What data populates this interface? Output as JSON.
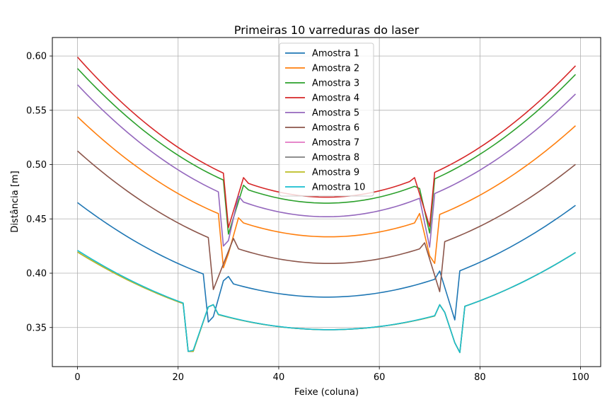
{
  "chart_data": {
    "type": "line",
    "title": "Primeiras 10 varreduras do laser",
    "xlabel": "Feixe (coluna)",
    "ylabel": "Distância [m]",
    "xlim": [
      -5,
      104
    ],
    "ylim": [
      0.314,
      0.617
    ],
    "xticks": [
      0,
      20,
      40,
      60,
      80,
      100
    ],
    "yticks": [
      0.35,
      0.4,
      0.45,
      0.5,
      0.55,
      0.6
    ],
    "ytick_labels": [
      "0.35",
      "0.40",
      "0.45",
      "0.50",
      "0.55",
      "0.60"
    ],
    "grid": true,
    "legend_position": "top-center",
    "x_range": [
      0,
      99
    ],
    "series": [
      {
        "name": "Amostra 1",
        "color": "#1f77b4",
        "segments": [
          {
            "x0": 0,
            "x1": 26,
            "end": 0.465,
            "mid": 0.378,
            "apex": 49.5
          },
          {
            "x0": 30,
            "x1": 72,
            "end": 0.465,
            "mid": 0.378,
            "apex": 49.5
          },
          {
            "x0": 75,
            "x1": 99,
            "end": 0.4625,
            "mid": 0.378,
            "apex": 49.5
          }
        ],
        "bridges": [
          [
            26,
            0.355
          ],
          [
            27,
            0.36
          ],
          [
            29,
            0.393
          ],
          [
            30,
            0.397
          ],
          [
            72,
            0.402
          ],
          [
            75,
            0.357
          ]
        ]
      },
      {
        "name": "Amostra 2",
        "color": "#ff7f0e",
        "segments": [
          {
            "x0": 0,
            "x1": 29,
            "end": 0.544,
            "mid": 0.4335,
            "apex": 50
          },
          {
            "x0": 32,
            "x1": 68,
            "end": 0.544,
            "mid": 0.4335,
            "apex": 50
          },
          {
            "x0": 71,
            "x1": 99,
            "end": 0.54,
            "mid": 0.4335,
            "apex": 50
          }
        ],
        "bridges": [
          [
            29,
            0.405
          ],
          [
            30,
            0.418
          ],
          [
            32,
            0.451
          ],
          [
            68,
            0.455
          ],
          [
            70,
            0.416
          ],
          [
            71,
            0.409
          ]
        ]
      },
      {
        "name": "Amostra 3",
        "color": "#2ca02c",
        "segments": [
          {
            "x0": 0,
            "x1": 30,
            "end": 0.5885,
            "mid": 0.4645,
            "apex": 49.5
          },
          {
            "x0": 33,
            "x1": 68,
            "end": 0.5885,
            "mid": 0.4645,
            "apex": 49.5
          },
          {
            "x0": 70,
            "x1": 99,
            "end": 0.583,
            "mid": 0.4645,
            "apex": 49.5
          }
        ],
        "bridges": [
          [
            30,
            0.436
          ],
          [
            33,
            0.481
          ],
          [
            68,
            0.478
          ],
          [
            70,
            0.437
          ]
        ]
      },
      {
        "name": "Amostra 4",
        "color": "#d62728",
        "segments": [
          {
            "x0": 0,
            "x1": 30,
            "end": 0.599,
            "mid": 0.47,
            "apex": 49.5
          },
          {
            "x0": 33,
            "x1": 67,
            "end": 0.599,
            "mid": 0.47,
            "apex": 49.5
          },
          {
            "x0": 70,
            "x1": 99,
            "end": 0.591,
            "mid": 0.47,
            "apex": 49.5
          }
        ],
        "bridges": [
          [
            30,
            0.442
          ],
          [
            33,
            0.488
          ],
          [
            67,
            0.488
          ],
          [
            70,
            0.443
          ]
        ]
      },
      {
        "name": "Amostra 5",
        "color": "#9467bd",
        "segments": [
          {
            "x0": 0,
            "x1": 29,
            "end": 0.5735,
            "mid": 0.452,
            "apex": 49.5
          },
          {
            "x0": 32,
            "x1": 68,
            "end": 0.5735,
            "mid": 0.452,
            "apex": 49.5
          },
          {
            "x0": 70,
            "x1": 99,
            "end": 0.565,
            "mid": 0.452,
            "apex": 49.5
          }
        ],
        "bridges": [
          [
            29,
            0.425
          ],
          [
            30,
            0.43
          ],
          [
            32,
            0.471
          ],
          [
            68,
            0.469
          ],
          [
            70,
            0.424
          ]
        ]
      },
      {
        "name": "Amostra 6",
        "color": "#8c564b",
        "segments": [
          {
            "x0": 0,
            "x1": 27,
            "end": 0.5125,
            "mid": 0.409,
            "apex": 50
          },
          {
            "x0": 31,
            "x1": 69,
            "end": 0.5125,
            "mid": 0.409,
            "apex": 50
          },
          {
            "x0": 72,
            "x1": 99,
            "end": 0.504,
            "mid": 0.409,
            "apex": 50
          }
        ],
        "bridges": [
          [
            27,
            0.385
          ],
          [
            31,
            0.432
          ],
          [
            69,
            0.428
          ],
          [
            72,
            0.383
          ]
        ]
      },
      {
        "name": "Amostra 7",
        "color": "#e377c2",
        "segments": [
          {
            "x0": 0,
            "x1": 22,
            "end": 0.4195,
            "mid": 0.348,
            "apex": 50
          },
          {
            "x0": 27,
            "x1": 72,
            "end": 0.4195,
            "mid": 0.348,
            "apex": 50
          },
          {
            "x0": 76,
            "x1": 99,
            "end": 0.422,
            "mid": 0.348,
            "apex": 50
          }
        ],
        "bridges": [
          [
            22,
            0.328
          ],
          [
            23,
            0.328
          ],
          [
            26,
            0.369
          ],
          [
            27,
            0.371
          ],
          [
            72,
            0.371
          ],
          [
            73,
            0.364
          ],
          [
            75,
            0.336
          ],
          [
            76,
            0.327
          ]
        ]
      },
      {
        "name": "Amostra 8",
        "color": "#7f7f7f",
        "segments": [
          {
            "x0": 0,
            "x1": 22,
            "end": 0.4195,
            "mid": 0.348,
            "apex": 50
          },
          {
            "x0": 27,
            "x1": 72,
            "end": 0.4195,
            "mid": 0.348,
            "apex": 50
          },
          {
            "x0": 76,
            "x1": 99,
            "end": 0.422,
            "mid": 0.348,
            "apex": 50
          }
        ],
        "bridges": [
          [
            22,
            0.328
          ],
          [
            23,
            0.328
          ],
          [
            26,
            0.369
          ],
          [
            27,
            0.371
          ],
          [
            72,
            0.371
          ],
          [
            73,
            0.364
          ],
          [
            75,
            0.336
          ],
          [
            76,
            0.327
          ]
        ]
      },
      {
        "name": "Amostra 9",
        "color": "#bcbd22",
        "segments": [
          {
            "x0": 0,
            "x1": 22,
            "end": 0.4195,
            "mid": 0.348,
            "apex": 50
          },
          {
            "x0": 27,
            "x1": 72,
            "end": 0.4195,
            "mid": 0.348,
            "apex": 50
          },
          {
            "x0": 76,
            "x1": 99,
            "end": 0.422,
            "mid": 0.348,
            "apex": 50
          }
        ],
        "bridges": [
          [
            22,
            0.328
          ],
          [
            23,
            0.328
          ],
          [
            26,
            0.369
          ],
          [
            27,
            0.371
          ],
          [
            72,
            0.371
          ],
          [
            73,
            0.364
          ],
          [
            75,
            0.336
          ],
          [
            76,
            0.327
          ]
        ]
      },
      {
        "name": "Amostra 10",
        "color": "#17becf",
        "segments": [
          {
            "x0": 0,
            "x1": 22,
            "end": 0.421,
            "mid": 0.348,
            "apex": 50
          },
          {
            "x0": 27,
            "x1": 72,
            "end": 0.421,
            "mid": 0.348,
            "apex": 50
          },
          {
            "x0": 76,
            "x1": 99,
            "end": 0.422,
            "mid": 0.348,
            "apex": 50
          }
        ],
        "bridges": [
          [
            22,
            0.328
          ],
          [
            23,
            0.329
          ],
          [
            26,
            0.369
          ],
          [
            27,
            0.371
          ],
          [
            72,
            0.371
          ],
          [
            73,
            0.364
          ],
          [
            75,
            0.336
          ],
          [
            76,
            0.327
          ]
        ]
      }
    ]
  }
}
